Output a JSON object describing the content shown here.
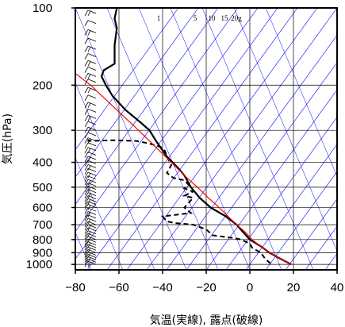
{
  "chart_data": {
    "type": "line",
    "title": "",
    "xlabel": "気温(実線), 露点(破線)",
    "ylabel": "気圧(hPa)",
    "x_ticks": [
      -80,
      -60,
      -40,
      -20,
      0,
      20,
      40
    ],
    "y_ticks": [
      100,
      200,
      300,
      400,
      500,
      600,
      700,
      800,
      900,
      1000
    ],
    "xlim": [
      -80,
      40
    ],
    "ylim": [
      1050,
      100
    ],
    "y_scale": "log",
    "mixing_ratio_labels": [
      "1",
      "5",
      "10",
      "15",
      "20g"
    ],
    "colors": {
      "temperature": "#000000",
      "dewpoint": "#000000",
      "parcel": "#ff0000",
      "isotherm": "#0000ff",
      "grid": "#000000"
    },
    "series": [
      {
        "style": "solid",
        "points": [
          [
            -61,
            100
          ],
          [
            -62,
            110
          ],
          [
            -61,
            120
          ],
          [
            -62,
            140
          ],
          [
            -62,
            150
          ],
          [
            -62,
            165
          ],
          [
            -67,
            175
          ],
          [
            -68,
            185
          ],
          [
            -66,
            200
          ],
          [
            -63,
            220
          ],
          [
            -57,
            250
          ],
          [
            -50,
            280
          ],
          [
            -46,
            300
          ],
          [
            -43,
            330
          ],
          [
            -41,
            350
          ],
          [
            -38,
            380
          ],
          [
            -33,
            420
          ],
          [
            -30,
            450
          ],
          [
            -27,
            500
          ],
          [
            -23,
            550
          ],
          [
            -18,
            600
          ],
          [
            -11,
            650
          ],
          [
            -6,
            700
          ],
          [
            -3,
            750
          ],
          [
            0,
            800
          ],
          [
            5,
            850
          ],
          [
            9,
            900
          ],
          [
            14,
            950
          ],
          [
            19,
            1000
          ]
        ]
      },
      {
        "style": "dashed",
        "points": [
          [
            -74,
            325
          ],
          [
            -74,
            330
          ],
          [
            -63,
            328
          ],
          [
            -52,
            330
          ],
          [
            -46,
            338
          ],
          [
            -41,
            348
          ],
          [
            -39,
            360
          ],
          [
            -38,
            380
          ],
          [
            -36,
            410
          ],
          [
            -38,
            440
          ],
          [
            -35,
            460
          ],
          [
            -30,
            470
          ],
          [
            -28,
            490
          ],
          [
            -30,
            505
          ],
          [
            -26,
            520
          ],
          [
            -30,
            540
          ],
          [
            -26,
            550
          ],
          [
            -30,
            600
          ],
          [
            -27,
            630
          ],
          [
            -40,
            650
          ],
          [
            -38,
            680
          ],
          [
            -34,
            690
          ],
          [
            -26,
            700
          ],
          [
            -20,
            730
          ],
          [
            -17,
            770
          ],
          [
            -7,
            790
          ],
          [
            -4,
            800
          ],
          [
            0,
            830
          ],
          [
            1,
            860
          ],
          [
            5,
            900
          ],
          [
            7,
            950
          ],
          [
            10,
            1000
          ]
        ]
      },
      {
        "style": "solid-red",
        "points": [
          [
            19,
            1000
          ],
          [
            14,
            950
          ],
          [
            9,
            900
          ],
          [
            5,
            850
          ],
          [
            1,
            800
          ],
          [
            -2,
            750
          ],
          [
            -6,
            700
          ],
          [
            -10,
            650
          ],
          [
            -14,
            600
          ],
          [
            -19,
            550
          ],
          [
            -24,
            500
          ],
          [
            -30,
            450
          ],
          [
            -36,
            400
          ],
          [
            -43,
            350
          ],
          [
            -51,
            300
          ],
          [
            -61,
            250
          ],
          [
            -73,
            200
          ],
          [
            -80,
            180
          ]
        ]
      }
    ],
    "wind_barbs_pressures": [
      105,
      115,
      125,
      135,
      145,
      155,
      165,
      175,
      185,
      195,
      210,
      225,
      240,
      255,
      270,
      285,
      300,
      315,
      330,
      345,
      360,
      375,
      390,
      405,
      420,
      435,
      450,
      465,
      480,
      495,
      510,
      525,
      540,
      555,
      570,
      585,
      600,
      620,
      640,
      660,
      680,
      700,
      720,
      740,
      760,
      780,
      800,
      820,
      840,
      860,
      880,
      900,
      920,
      940,
      960,
      980,
      1000
    ]
  }
}
